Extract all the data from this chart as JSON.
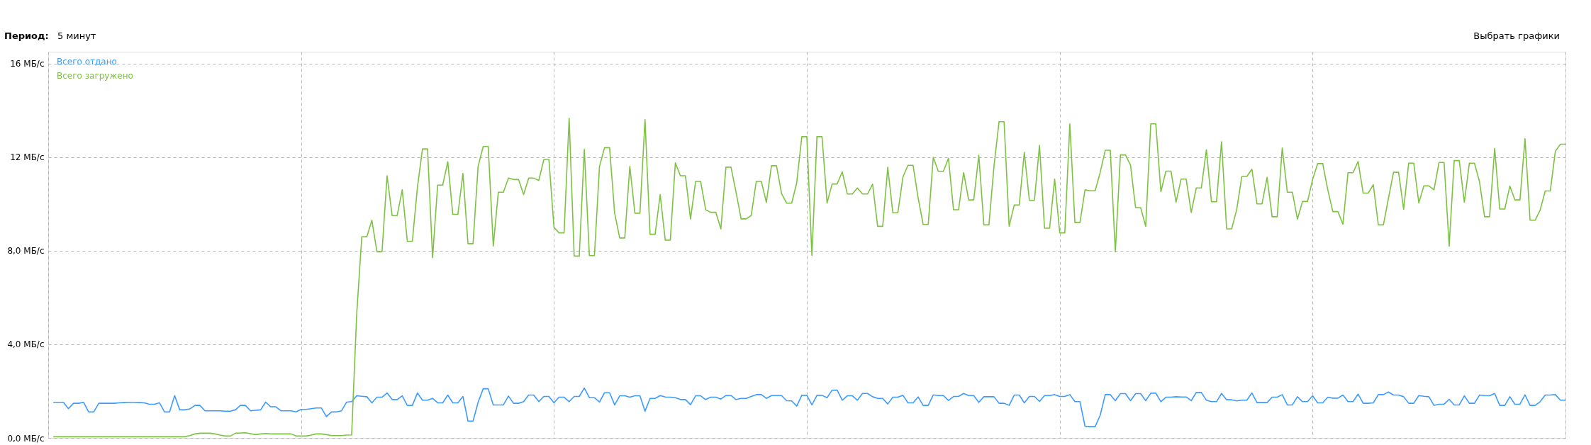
{
  "chart_data": {
    "type": "line",
    "categories": [
      null,
      null,
      null,
      null,
      null,
      null,
      null,
      null,
      null,
      null,
      null,
      null,
      null,
      null,
      null,
      null,
      null,
      null,
      null,
      null,
      null,
      null,
      null,
      null,
      null,
      null,
      null,
      null,
      null,
      null,
      null,
      null,
      null,
      null,
      null,
      null,
      null,
      null,
      null,
      null,
      null,
      null,
      null,
      null,
      null,
      null,
      null,
      null,
      null,
      null,
      null,
      null,
      null,
      null,
      null,
      null,
      null,
      null,
      null,
      null,
      null,
      null,
      null,
      null,
      null,
      null,
      null,
      null,
      null,
      null,
      null,
      null,
      null,
      null,
      null,
      null,
      null,
      null,
      null,
      null,
      null,
      null,
      null,
      null,
      null,
      null,
      null,
      null,
      null,
      null,
      null,
      null,
      null,
      null,
      null,
      null,
      null,
      null,
      null,
      null,
      null,
      null,
      null,
      null,
      null,
      null,
      null,
      null,
      null,
      null,
      null,
      null,
      null,
      null,
      null,
      null,
      null,
      null,
      null,
      null,
      null,
      null,
      null,
      null,
      null,
      null,
      null,
      null,
      null,
      null,
      null,
      null,
      null,
      null,
      null,
      null,
      null,
      null,
      null,
      null,
      null,
      null,
      null,
      null,
      null,
      null,
      null,
      null,
      null,
      null,
      null,
      null,
      null,
      null,
      null,
      null,
      null,
      null,
      null,
      null,
      null,
      null,
      null,
      null,
      null,
      null,
      null,
      null,
      null,
      null,
      null,
      null,
      null,
      null,
      null,
      null,
      null,
      null,
      null,
      null,
      null,
      null,
      null,
      null,
      null,
      null,
      null,
      null,
      null,
      null,
      null,
      null,
      null,
      null,
      null,
      null,
      null,
      null,
      null,
      null,
      null,
      null,
      null,
      null,
      null,
      null,
      null,
      null,
      null,
      null,
      null,
      null,
      null,
      null,
      null,
      null,
      null,
      null,
      null,
      null,
      null,
      null,
      null,
      null,
      null,
      null,
      null,
      null,
      null,
      null,
      null,
      null,
      null,
      null,
      null,
      null,
      null,
      null,
      null,
      null,
      null,
      null,
      null,
      null,
      null,
      null,
      null,
      null,
      null,
      null,
      null,
      null,
      null,
      null,
      null,
      null,
      null,
      null,
      null,
      null,
      null,
      null,
      null,
      null,
      null,
      null,
      null,
      null,
      null,
      null,
      null,
      null,
      null,
      null,
      null,
      null,
      null,
      null,
      null,
      null,
      null,
      null,
      null,
      null,
      null,
      null,
      null,
      null,
      null,
      null,
      null,
      null,
      null,
      null,
      null,
      null,
      null,
      null,
      null,
      null
    ],
    "ylim": [
      0,
      16.5
    ],
    "yticks": [
      {
        "value": 0,
        "label": "0,0 МБ/с"
      },
      {
        "value": 4,
        "label": "4,0 МБ/с"
      },
      {
        "value": 8,
        "label": "8,0 МБ/с"
      },
      {
        "value": 12,
        "label": "12 МБ/с"
      },
      {
        "value": 16,
        "label": "16 МБ/с"
      }
    ],
    "tick_labels": "y",
    "grid": true,
    "line_style": "solid",
    "annotations": [
      "Период:",
      "5 минут",
      "Выбрать графики"
    ],
    "series": [
      {
        "name": "Всего отдано",
        "color": "#3d9bff",
        "values": [
          1.52,
          1.52,
          1.52,
          1.25,
          1.48,
          1.48,
          1.52,
          1.11,
          1.11,
          1.48,
          1.48,
          1.48,
          1.48,
          1.5,
          1.51,
          1.52,
          1.52,
          1.51,
          1.5,
          1.44,
          1.44,
          1.5,
          1.11,
          1.11,
          1.81,
          1.2,
          1.2,
          1.24,
          1.39,
          1.39,
          1.16,
          1.16,
          1.16,
          1.16,
          1.14,
          1.14,
          1.2,
          1.39,
          1.39,
          1.16,
          1.18,
          1.2,
          1.53,
          1.33,
          1.33,
          1.16,
          1.16,
          1.16,
          1.11,
          1.22,
          1.22,
          1.25,
          1.28,
          1.28,
          0.91,
          1.11,
          1.11,
          1.16,
          1.53,
          1.55,
          1.8,
          1.78,
          1.76,
          1.5,
          1.74,
          1.74,
          1.92,
          1.64,
          1.64,
          1.8,
          1.39,
          1.39,
          1.92,
          1.61,
          1.61,
          1.69,
          1.5,
          1.5,
          1.83,
          1.5,
          1.5,
          1.77,
          0.72,
          0.72,
          1.52,
          2.1,
          2.1,
          1.41,
          1.41,
          1.41,
          1.79,
          1.48,
          1.48,
          1.55,
          1.83,
          1.83,
          1.55,
          1.77,
          1.77,
          1.5,
          1.74,
          1.74,
          1.55,
          1.77,
          1.77,
          2.13,
          1.72,
          1.72,
          1.53,
          1.93,
          1.93,
          1.41,
          1.8,
          1.8,
          1.74,
          1.8,
          1.8,
          1.14,
          1.69,
          1.69,
          1.81,
          1.75,
          1.74,
          1.72,
          1.64,
          1.64,
          1.42,
          1.8,
          1.8,
          1.64,
          1.74,
          1.74,
          1.66,
          1.81,
          1.81,
          1.64,
          1.69,
          1.69,
          1.77,
          1.85,
          1.85,
          1.69,
          1.81,
          1.81,
          1.81,
          1.59,
          1.58,
          1.36,
          1.82,
          1.82,
          1.41,
          1.82,
          1.82,
          1.72,
          2.04,
          2.04,
          1.61,
          1.8,
          1.8,
          1.61,
          1.9,
          1.9,
          1.76,
          1.69,
          1.69,
          1.45,
          1.74,
          1.74,
          1.82,
          1.5,
          1.5,
          1.75,
          1.39,
          1.39,
          1.84,
          1.81,
          1.81,
          1.6,
          1.77,
          1.77,
          1.9,
          1.81,
          1.81,
          1.52,
          1.76,
          1.76,
          1.76,
          1.48,
          1.48,
          1.39,
          1.83,
          1.83,
          1.5,
          1.77,
          1.77,
          1.56,
          1.81,
          1.81,
          1.85,
          1.77,
          1.77,
          1.85,
          1.55,
          1.55,
          0.5,
          0.48,
          0.48,
          0.97,
          1.85,
          1.85,
          1.59,
          1.89,
          1.89,
          1.59,
          1.89,
          1.89,
          1.59,
          1.91,
          1.91,
          1.55,
          1.74,
          1.74,
          1.76,
          1.75,
          1.75,
          1.59,
          1.94,
          1.94,
          1.61,
          1.55,
          1.55,
          1.9,
          1.63,
          1.63,
          1.58,
          1.61,
          1.61,
          1.92,
          1.51,
          1.51,
          1.51,
          1.74,
          1.74,
          1.85,
          1.41,
          1.41,
          1.76,
          1.55,
          1.55,
          1.8,
          1.5,
          1.5,
          1.74,
          1.7,
          1.7,
          1.83,
          1.55,
          1.55,
          1.87,
          1.48,
          1.48,
          1.5,
          1.85,
          1.85,
          1.96,
          1.83,
          1.83,
          1.76,
          1.48,
          1.48,
          1.81,
          1.78,
          1.76,
          1.39,
          1.44,
          1.44,
          1.65,
          1.41,
          1.41,
          1.8,
          1.48,
          1.48,
          1.83,
          1.81,
          1.8,
          1.9,
          1.39,
          1.39,
          1.76,
          1.44,
          1.44,
          1.84,
          1.39,
          1.39,
          1.55,
          1.83,
          1.83,
          1.85,
          1.61,
          1.61
        ]
      },
      {
        "name": "Всего загружено",
        "color": "#7dc242",
        "values": [
          0.05,
          0.05,
          0.05,
          0.05,
          0.05,
          0.05,
          0.05,
          0.05,
          0.05,
          0.05,
          0.05,
          0.05,
          0.05,
          0.05,
          0.05,
          0.05,
          0.05,
          0.05,
          0.05,
          0.05,
          0.05,
          0.05,
          0.05,
          0.05,
          0.05,
          0.05,
          0.05,
          0.1,
          0.17,
          0.2,
          0.2,
          0.2,
          0.17,
          0.12,
          0.08,
          0.08,
          0.2,
          0.21,
          0.22,
          0.18,
          0.14,
          0.17,
          0.19,
          0.17,
          0.17,
          0.17,
          0.17,
          0.17,
          0.08,
          0.08,
          0.08,
          0.12,
          0.17,
          0.17,
          0.14,
          0.1,
          0.1,
          0.1,
          0.12,
          0.13,
          5.3,
          8.6,
          8.6,
          9.3,
          7.95,
          7.95,
          11.2,
          9.5,
          9.5,
          10.6,
          8.4,
          8.4,
          10.7,
          12.35,
          12.35,
          7.7,
          10.8,
          10.8,
          11.8,
          9.55,
          9.55,
          11.3,
          8.3,
          8.3,
          11.6,
          12.45,
          12.45,
          8.2,
          10.5,
          10.5,
          11.1,
          11.04,
          11.04,
          10.4,
          11.1,
          11.1,
          11.0,
          11.9,
          11.9,
          9.0,
          8.76,
          8.76,
          13.65,
          7.77,
          7.77,
          12.33,
          7.79,
          7.79,
          11.6,
          12.4,
          12.4,
          9.6,
          8.54,
          8.54,
          11.6,
          9.6,
          9.6,
          13.6,
          8.7,
          8.7,
          10.4,
          8.45,
          8.45,
          11.75,
          11.2,
          11.2,
          9.35,
          10.96,
          10.96,
          9.75,
          9.64,
          9.64,
          8.93,
          11.57,
          11.57,
          10.5,
          9.36,
          9.36,
          9.5,
          10.96,
          10.96,
          10.06,
          11.63,
          11.63,
          10.44,
          10.03,
          10.03,
          10.9,
          12.87,
          12.87,
          7.8,
          12.87,
          12.87,
          10.04,
          10.85,
          10.85,
          11.37,
          10.42,
          10.42,
          10.68,
          10.42,
          10.42,
          10.84,
          9.04,
          9.04,
          11.56,
          9.62,
          9.62,
          11.15,
          11.65,
          11.65,
          10.26,
          9.12,
          9.12,
          11.99,
          11.39,
          11.39,
          11.95,
          9.75,
          9.75,
          11.34,
          10.17,
          10.17,
          12.08,
          9.1,
          9.1,
          11.6,
          13.51,
          13.51,
          9.04,
          9.95,
          9.95,
          12.2,
          10.15,
          10.15,
          12.5,
          8.96,
          8.96,
          11.06,
          8.76,
          8.76,
          13.42,
          9.2,
          9.2,
          10.6,
          10.56,
          10.56,
          11.34,
          12.29,
          12.29,
          7.95,
          12.09,
          12.09,
          11.65,
          9.84,
          9.84,
          9.04,
          13.42,
          13.42,
          10.52,
          11.4,
          11.4,
          10.07,
          11.06,
          11.06,
          9.63,
          10.68,
          10.68,
          12.31,
          10.09,
          10.09,
          12.65,
          8.93,
          8.93,
          9.76,
          11.17,
          11.17,
          11.48,
          10.0,
          10.0,
          11.13,
          9.45,
          9.45,
          12.39,
          10.5,
          10.5,
          9.35,
          10.1,
          10.1,
          11.04,
          11.72,
          11.72,
          10.6,
          9.67,
          9.67,
          9.13,
          11.33,
          11.33,
          11.81,
          10.46,
          10.46,
          10.82,
          9.1,
          9.1,
          10.24,
          11.35,
          11.35,
          9.77,
          11.74,
          11.74,
          10.04,
          10.77,
          10.77,
          10.6,
          11.77,
          11.77,
          8.19,
          11.85,
          11.85,
          10.07,
          11.74,
          11.74,
          10.95,
          9.45,
          9.45,
          12.37,
          9.78,
          9.78,
          10.76,
          10.17,
          10.17,
          12.78,
          9.3,
          9.3,
          9.74,
          10.55,
          10.55,
          12.25,
          12.55,
          12.55
        ]
      }
    ]
  }
}
